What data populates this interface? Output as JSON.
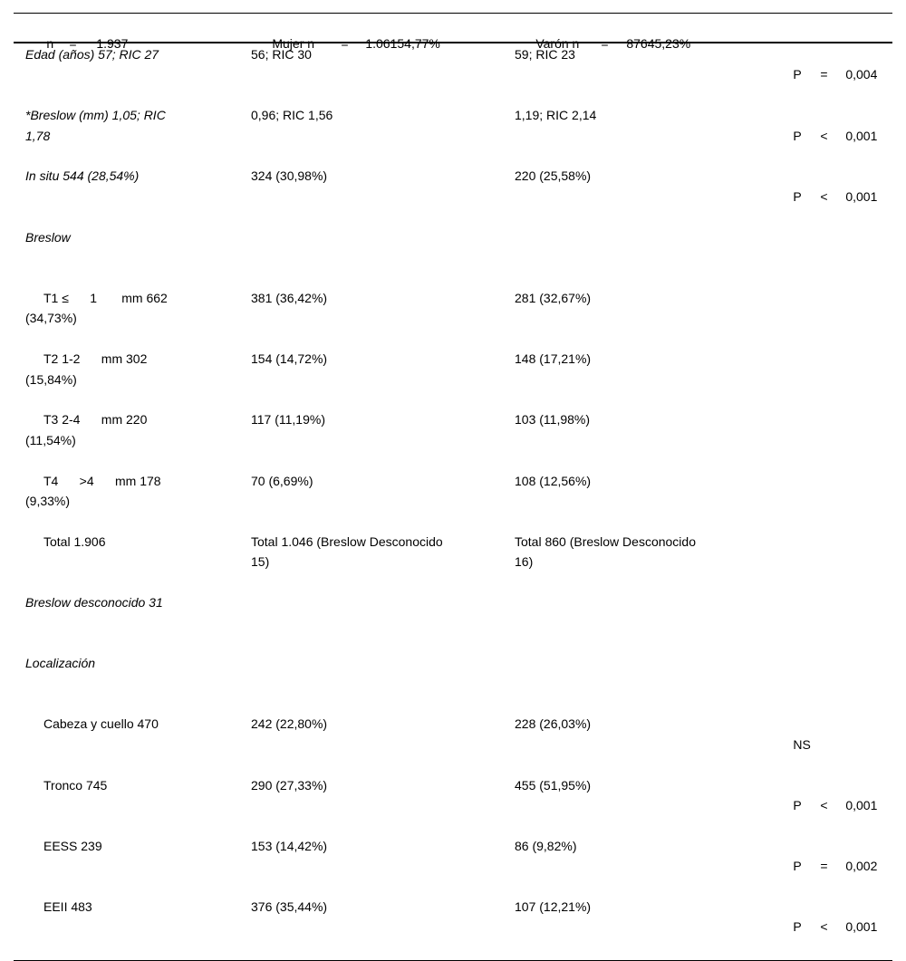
{
  "table": {
    "header": {
      "total": {
        "label": "n",
        "op": "=",
        "value": "1.937"
      },
      "mujer": {
        "label": "Mujer n",
        "op": "=",
        "value": "1.06154,77%"
      },
      "varon": {
        "label": "Varón n",
        "op": "=",
        "value": "87645,23%"
      },
      "p_col": {
        "label": "",
        "op": "",
        "value": ""
      }
    },
    "rows": [
      {
        "c1": "Edad (años) 57; RIC 27",
        "style": "italic",
        "c2": "56; RIC 30",
        "c3": "59; RIC 23",
        "p": {
          "label": "P",
          "op": "=",
          "value": "0,004"
        }
      },
      {
        "c1": "*Breslow (mm) 1,05; RIC\n1,78",
        "style": "italic",
        "c2": "0,96; RIC 1,56",
        "c3": "1,19; RIC 2,14",
        "p": {
          "label": "P",
          "op": "<",
          "value": "0,001"
        }
      },
      {
        "c1": "In situ 544 (28,54%)",
        "style": "italic",
        "c2": "324 (30,98%)",
        "c3": "220 (25,58%)",
        "p": {
          "label": "P",
          "op": "<",
          "value": "0,001"
        }
      },
      {
        "c1": "Breslow",
        "style": "italic",
        "c2": "",
        "c3": "",
        "p": null
      },
      {
        "c1": "T1 ≤      1       mm 662\n(34,73%)",
        "style": "indent",
        "c2": "381 (36,42%)",
        "c3": "281 (32,67%)",
        "p": null
      },
      {
        "c1": "T2 1-2      mm 302\n(15,84%)",
        "style": "indent",
        "c2": "154 (14,72%)",
        "c3": "148 (17,21%)",
        "p": null
      },
      {
        "c1": "T3 2-4      mm 220\n(11,54%)",
        "style": "indent",
        "c2": "117 (11,19%)",
        "c3": "103 (11,98%)",
        "p": null
      },
      {
        "c1": "T4      >4      mm 178\n(9,33%)",
        "style": "indent",
        "c2": "70 (6,69%)",
        "c3": "108 (12,56%)",
        "p": null
      },
      {
        "c1": "Total 1.906",
        "style": "indent",
        "c2": "Total 1.046 (Breslow Desconocido\n15)",
        "c3": "Total 860 (Breslow Desconocido\n16)",
        "p": null
      },
      {
        "c1": "Breslow desconocido 31",
        "style": "italic",
        "c2": "",
        "c3": "",
        "p": null
      },
      {
        "c1": "Localización",
        "style": "italic",
        "c2": "",
        "c3": "",
        "p": null
      },
      {
        "c1": "Cabeza y cuello 470",
        "style": "indent",
        "c2": "242 (22,80%)",
        "c3": "228 (26,03%)",
        "p": {
          "label": "NS",
          "op": "",
          "value": ""
        }
      },
      {
        "c1": "Tronco 745",
        "style": "indent",
        "c2": "290 (27,33%)",
        "c3": "455 (51,95%)",
        "p": {
          "label": "P",
          "op": "<",
          "value": "0,001"
        }
      },
      {
        "c1": "EESS 239",
        "style": "indent",
        "c2": "153 (14,42%)",
        "c3": "86 (9,82%)",
        "p": {
          "label": "P",
          "op": "=",
          "value": "0,002"
        }
      },
      {
        "c1": "EEII 483",
        "style": "indent",
        "c2": "376 (35,44%)",
        "c3": "107 (12,21%)",
        "p": {
          "label": "P",
          "op": "<",
          "value": "0,001"
        }
      }
    ]
  }
}
